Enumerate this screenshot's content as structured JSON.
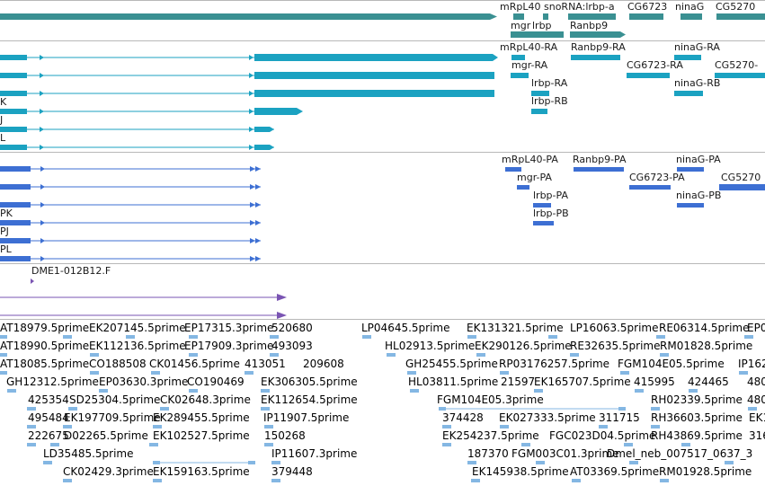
{
  "colors": {
    "gene": "#3a9092",
    "mrna": "#1ba2c1",
    "protein": "#3d6fd3",
    "clone": "#7a54b3",
    "est": "#84b7e3",
    "separator": "#b8b8b8"
  },
  "gene_track": {
    "labels": [
      "mRpL40",
      "snoRNA:lrbp-a",
      "CG6723",
      "ninaG",
      "CG5270",
      "mgr",
      "lrbp",
      "Ranbp9"
    ]
  },
  "mrna_track": {
    "left_labels": [
      "K",
      "J",
      "L"
    ],
    "labels": [
      "mRpL40-RA",
      "Ranbp9-RA",
      "ninaG-RA",
      "mgr-RA",
      "CG6723-RA",
      "CG5270-",
      "lrbp-RA",
      "ninaG-RB",
      "lrbp-RB"
    ]
  },
  "protein_track": {
    "left_labels": [
      "PK",
      "PJ",
      "PL"
    ],
    "labels": [
      "mRpL40-PA",
      "Ranbp9-PA",
      "ninaG-PA",
      "mgr-PA",
      "CG6723-PA",
      "CG5270",
      "lrbp-PA",
      "ninaG-PB",
      "lrbp-PB"
    ]
  },
  "clone_track": {
    "labels": [
      "DME1-012B12.F"
    ]
  },
  "est_track": {
    "labels": [
      "AT18979.5prime",
      "EK207145.5prime",
      "EP17315.3prime",
      "520680",
      "LP04645.5prime",
      "EK131321.5prime",
      "LP16063.5prime",
      "RE06314.5prime",
      "EP0",
      "AT18990.5prime",
      "EK112136.5prime",
      "EP17909.3prime",
      "493093",
      "HL02913.5prime",
      "EK290126.5prime",
      "RE32635.5prime",
      "RM01828.5prime",
      "AT18085.5prime",
      "CO188508",
      "CK01456.5prime",
      "413051",
      "209608",
      "GH25455.5prime",
      "RP03176257.5prime",
      "FGM104E05.5prime",
      "IP162",
      "GH12312.5prime",
      "EP03630.3prime",
      "CO190469",
      "EK306305.5prime",
      "HL03811.5prime",
      "21597",
      "EK165707.5prime",
      "415995",
      "424465",
      "480",
      "425354",
      "SD25304.5prime",
      "CK02648.3prime",
      "EK112654.5prime",
      "FGM104E05.3prime",
      "RH02339.5prime",
      "480",
      "495484",
      "EK197709.5prime",
      "EK289455.5prime",
      "IP11907.5prime",
      "374428",
      "EK027333.5prime",
      "311715",
      "RH36603.5prime",
      "EK1",
      "222675",
      "D02265.5prime",
      "EK102527.5prime",
      "150268",
      "EK254237.5prime",
      "FGC023D04.5prime",
      "RH43869.5prime",
      "316",
      "LD35485.5prime",
      "IP11607.3prime",
      "187370",
      "FGM003C01.3prime",
      "Dmel_neb_007517_0637_3",
      "CK02429.3prime",
      "EK159163.5prime",
      "379448",
      "EK145938.5prime",
      "AT03369.5prime",
      "RM01928.5prime"
    ]
  }
}
